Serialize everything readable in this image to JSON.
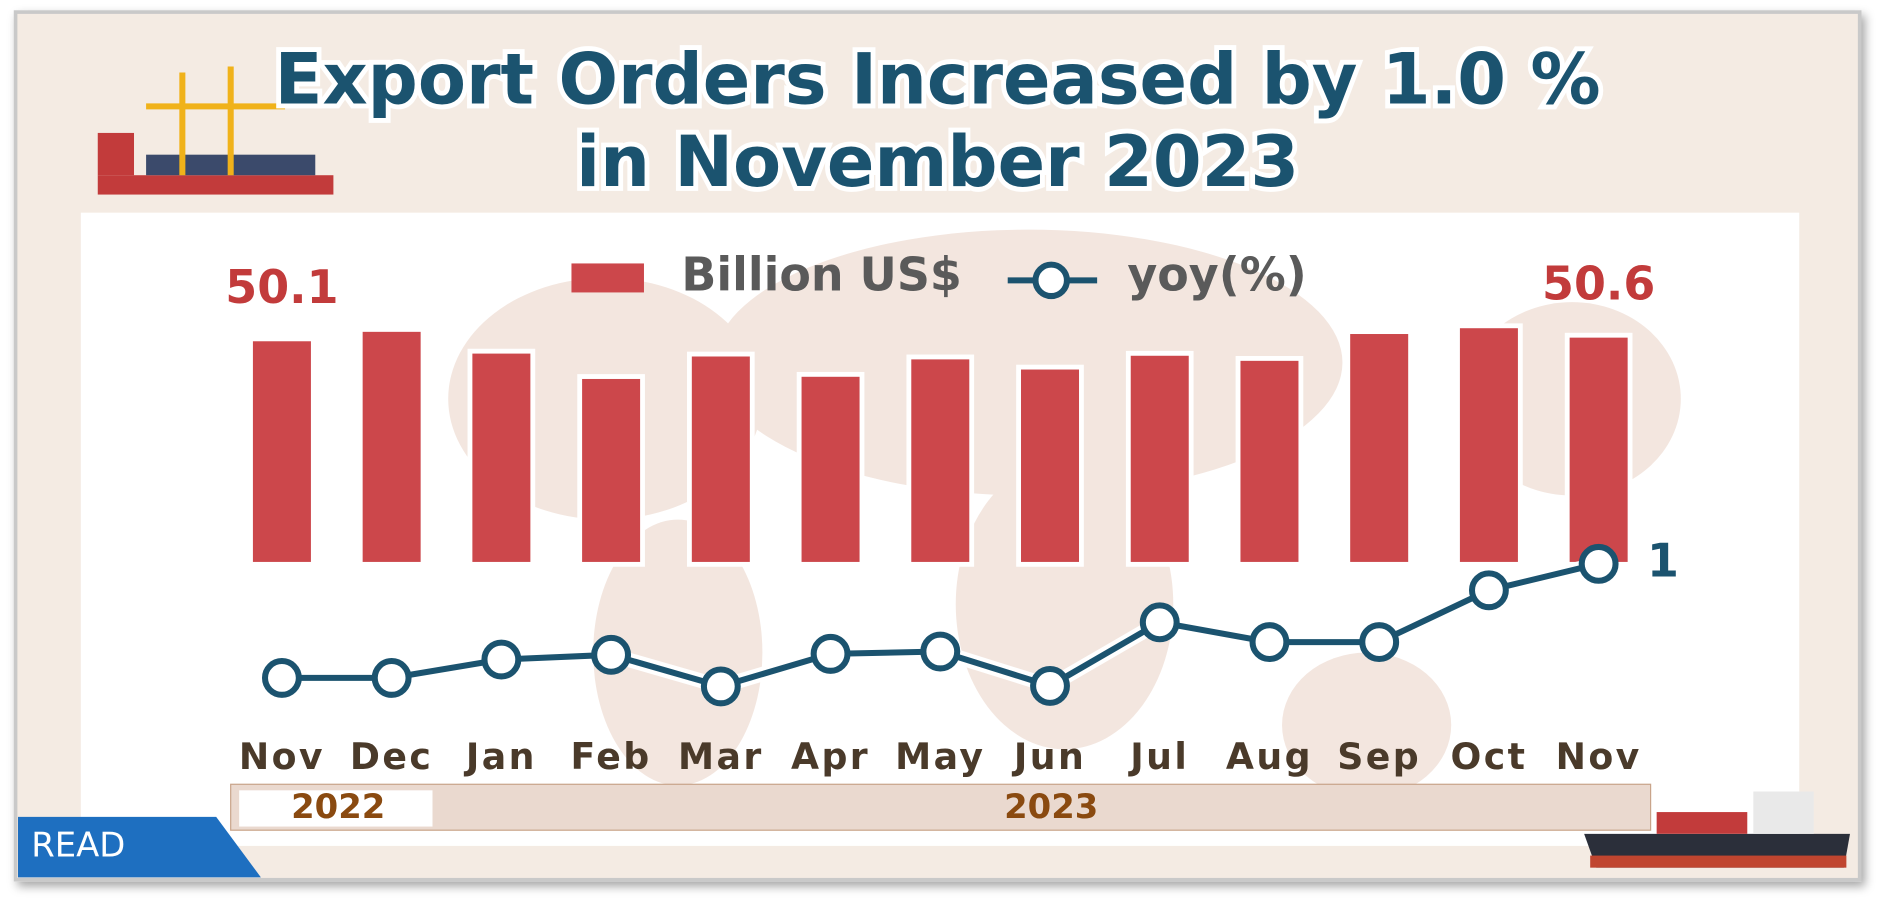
{
  "title": [
    "Export Orders Increased by 1.0 %",
    "in November 2023"
  ],
  "badge": "READ",
  "chart_data": {
    "type": "bar",
    "categories": [
      "Nov",
      "Dec",
      "Jan",
      "Feb",
      "Mar",
      "Apr",
      "May",
      "Jun",
      "Jul",
      "Aug",
      "Sep",
      "Oct",
      "Nov"
    ],
    "x_groups": [
      "2022",
      "2023"
    ],
    "series": [
      {
        "name": "Billion US$",
        "color": "#cc474b",
        "values": [
          50.1,
          51.4,
          48.4,
          44.9,
          48.0,
          45.2,
          47.6,
          46.2,
          48.1,
          47.4,
          51.1,
          51.9,
          50.6
        ]
      },
      {
        "name": "yoy(%)",
        "color": "#1b536f",
        "axis": "y2",
        "values": [
          -23.2,
          -23.2,
          -19.3,
          -18.3,
          -25.0,
          -18.1,
          -17.6,
          -24.9,
          -11.4,
          -15.6,
          -15.6,
          -4.6,
          1.0
        ]
      }
    ],
    "ylim": [
      19,
      55
    ],
    "y2lim": [
      -30,
      5
    ],
    "legend": "top"
  }
}
